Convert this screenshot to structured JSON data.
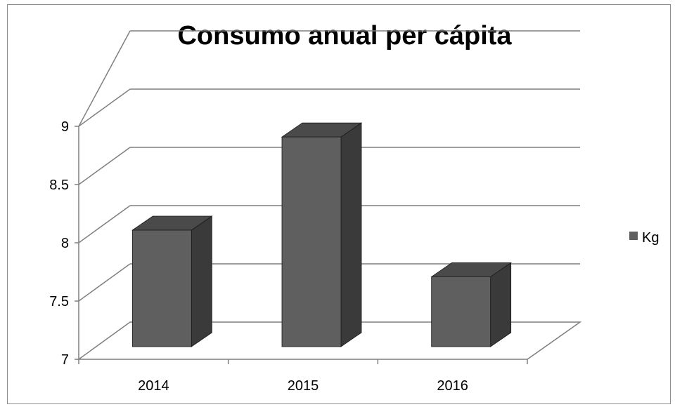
{
  "chart_data": {
    "type": "bar",
    "title": "Consumo anual per cápita",
    "categories": [
      "2014",
      "2015",
      "2016"
    ],
    "series": [
      {
        "name": "Kg",
        "values": [
          8.0,
          8.8,
          7.6
        ]
      }
    ],
    "ylim": [
      7,
      9
    ],
    "yticks": [
      "7",
      "7.5",
      "8",
      "8.5",
      "9"
    ],
    "grid": true,
    "legend": "right",
    "style": "3d-column",
    "colors": {
      "front": "#5f5f5f",
      "top": "#4a4a4a",
      "side": "#3a3a3a",
      "grid": "#7f7f7f"
    }
  }
}
